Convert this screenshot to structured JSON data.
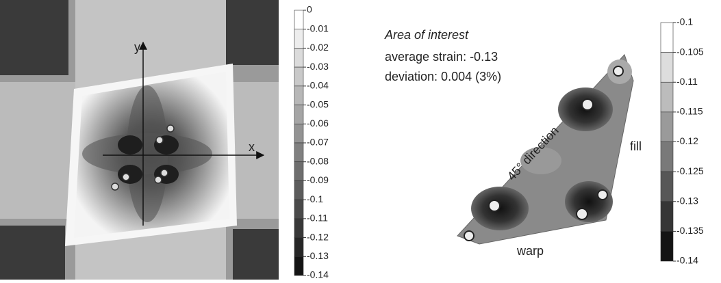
{
  "left_panel": {
    "axis_y": "y",
    "axis_x": "x",
    "colorbar": [
      "0",
      "-0.01",
      "-0.02",
      "-0.03",
      "-0.04",
      "-0.05",
      "-0.06",
      "-0.07",
      "-0.08",
      "-0.09",
      "-0.1",
      "-0.11",
      "-0.12",
      "-0.13",
      "-0.14"
    ]
  },
  "right_panel": {
    "heading": "Area of interest",
    "average": "average strain: -0.13",
    "deviation": "deviation: 0.004 (3%)",
    "direction": "45° direction",
    "fill": "fill",
    "warp": "warp",
    "colorbar": [
      "-0.1",
      "-0.105",
      "-0.11",
      "-0.115",
      "-0.12",
      "-0.125",
      "-0.13",
      "-0.135",
      "-0.14"
    ]
  }
}
